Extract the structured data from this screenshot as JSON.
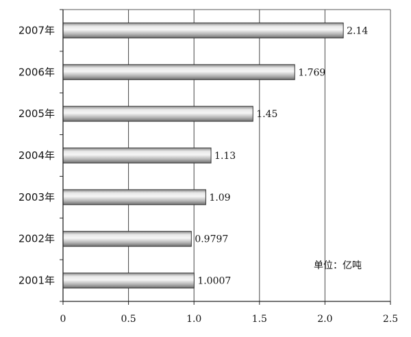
{
  "chart_data": {
    "type": "bar",
    "orientation": "horizontal",
    "categories": [
      "2007年",
      "2006年",
      "2005年",
      "2004年",
      "2003年",
      "2002年",
      "2001年"
    ],
    "values": [
      2.14,
      1.769,
      1.45,
      1.13,
      1.09,
      0.9797,
      1.0007
    ],
    "value_labels": [
      "2.14",
      "1.769",
      "1.45",
      "1.13",
      "1.09",
      "0.9797",
      "1.0007"
    ],
    "xlim": [
      0,
      2.5
    ],
    "x_ticks": [
      0,
      0.5,
      1.0,
      1.5,
      2.0,
      2.5
    ],
    "x_tick_labels": [
      "0",
      "0.5",
      "1.0",
      "1.5",
      "2.0",
      "2.5"
    ],
    "grid": "vertical",
    "unit_note": "单位：亿吨",
    "bar_color": "#bcbcbc",
    "title": "",
    "xlabel": "",
    "ylabel": ""
  }
}
